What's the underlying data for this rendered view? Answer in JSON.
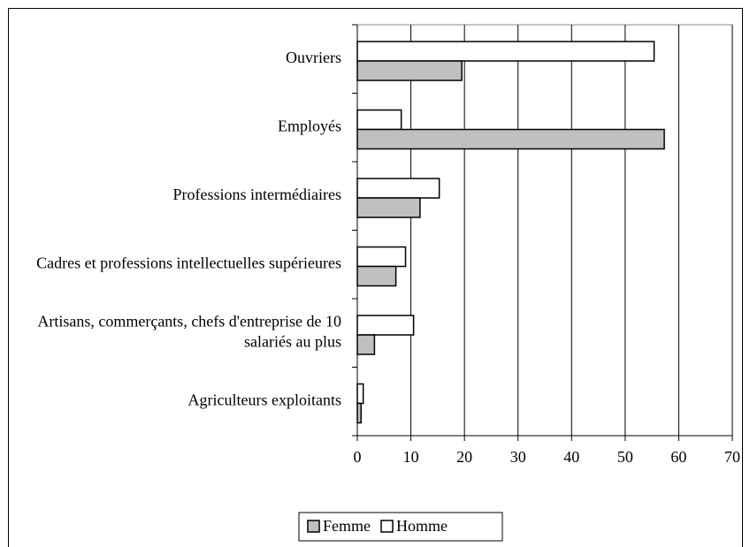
{
  "chart_data": {
    "type": "bar",
    "orientation": "horizontal",
    "categories": [
      "Ouvriers",
      "Employés",
      "Professions intermédiaires",
      "Cadres et professions intellectuelles supérieures",
      "Artisans, commerçants, chefs d'entreprise de 10 salariés au plus",
      "Agriculteurs exploitants"
    ],
    "series": [
      {
        "name": "Femme",
        "color": "#c0c0c0",
        "values": [
          19.5,
          57.3,
          11.7,
          7.2,
          3.2,
          0.7
        ]
      },
      {
        "name": "Homme",
        "color": "#ffffff",
        "values": [
          55.4,
          8.2,
          15.3,
          9.0,
          10.5,
          1.1
        ]
      }
    ],
    "xlim": [
      0,
      70
    ],
    "xticks": [
      0,
      10,
      20,
      30,
      40,
      50,
      60,
      70
    ],
    "grid": true,
    "legend": "bottom"
  }
}
